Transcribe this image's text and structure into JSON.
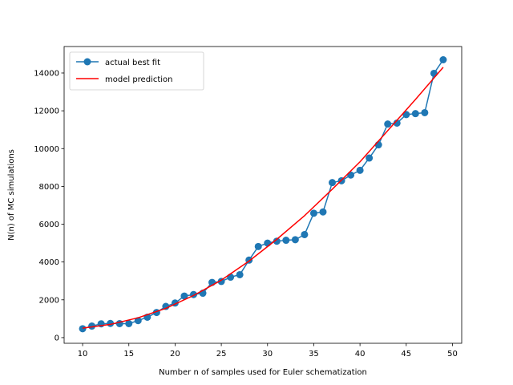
{
  "chart_data": {
    "type": "line",
    "title": "",
    "xlabel": "Number n of samples used for Euler schematization",
    "ylabel": "N(n) of MC simulations",
    "xlim": [
      8,
      51
    ],
    "ylim": [
      -300,
      15400
    ],
    "xticks": [
      10,
      15,
      20,
      25,
      30,
      35,
      40,
      45,
      50
    ],
    "yticks": [
      0,
      2000,
      4000,
      6000,
      8000,
      10000,
      12000,
      14000
    ],
    "grid": false,
    "legend_position": "top-left",
    "series": [
      {
        "name": "actual best fit",
        "color": "#1f77b4",
        "marker": "circle",
        "x": [
          10,
          11,
          12,
          13,
          14,
          15,
          16,
          17,
          18,
          19,
          20,
          21,
          22,
          23,
          24,
          25,
          26,
          27,
          28,
          29,
          30,
          31,
          32,
          33,
          34,
          35,
          36,
          37,
          38,
          39,
          40,
          41,
          42,
          43,
          44,
          45,
          46,
          47,
          48,
          49
        ],
        "y": [
          470,
          610,
          730,
          750,
          740,
          740,
          900,
          1080,
          1330,
          1650,
          1830,
          2200,
          2280,
          2350,
          2920,
          2970,
          3200,
          3330,
          4100,
          4820,
          5000,
          5100,
          5150,
          5180,
          5450,
          6580,
          6650,
          8200,
          8300,
          8600,
          8850,
          9500,
          10200,
          11300,
          11350,
          11800,
          11850,
          11900,
          13980,
          14700
        ]
      },
      {
        "name": "model prediction",
        "color": "#ff0000",
        "marker": "none",
        "x": [
          10,
          13,
          16,
          19,
          22,
          25,
          28,
          31,
          34,
          37,
          40,
          43,
          46,
          49
        ],
        "y": [
          500,
          700,
          1050,
          1550,
          2230,
          3040,
          4050,
          5200,
          6450,
          7850,
          9300,
          10950,
          12600,
          14300
        ]
      }
    ]
  }
}
